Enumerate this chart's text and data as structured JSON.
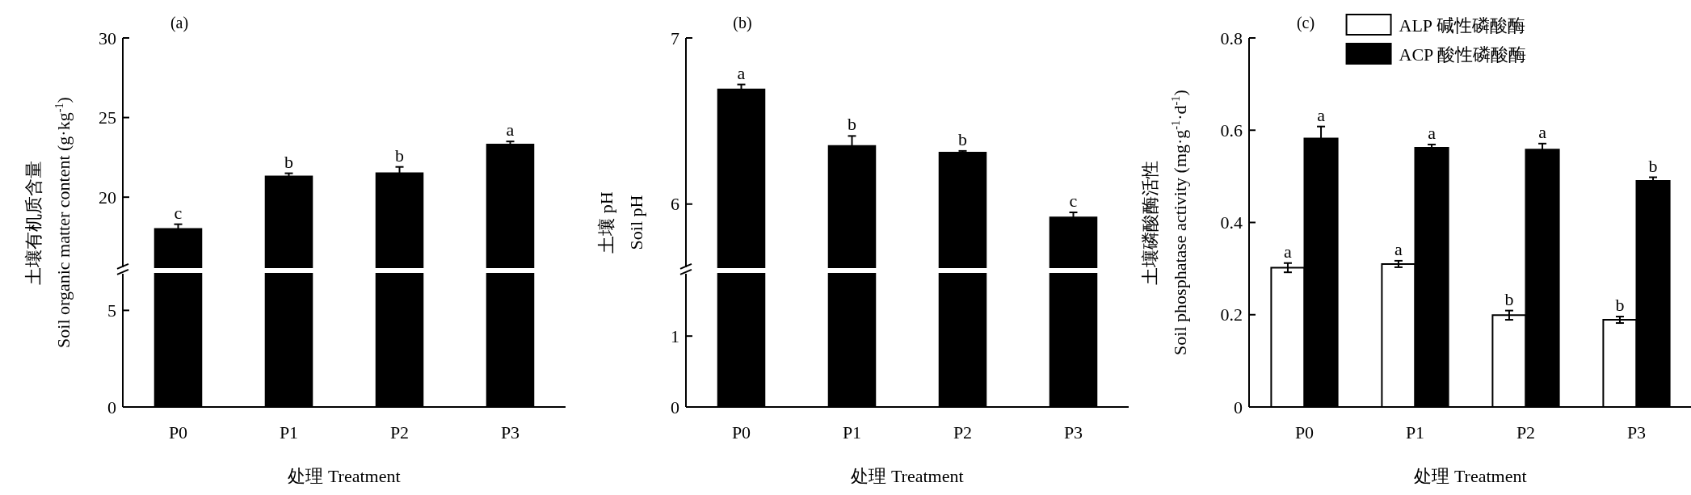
{
  "chart_data": [
    {
      "type": "bar",
      "title": "(a)",
      "ylabel": "土壤有机质含量\nSoil organic matter content (g·kg$^{-1}$)",
      "categories": [
        "P0",
        "P1",
        "P2",
        "P3"
      ],
      "values": [
        18.0,
        21.3,
        21.5,
        23.3
      ],
      "errors": [
        0.3,
        0.2,
        0.4,
        0.2
      ],
      "color": "#000000",
      "ylim": [
        15.6,
        30
      ],
      "yticks": [
        20,
        25,
        30
      ],
      "tick_labels": "y",
      "annotations": [
        {
          "text": "c",
          "x": "P0",
          "y": 18.0
        },
        {
          "text": "b",
          "x": "P1",
          "y": 21.3
        },
        {
          "text": "b",
          "x": "P2",
          "y": 21.5
        },
        {
          "text": "a",
          "x": "P3",
          "y": 23.3
        }
      ]
    },
    {
      "type": "bar",
      "xlabel": "处理 Treatment",
      "categories": [
        "P0",
        "P1",
        "P2",
        "P3"
      ],
      "values": [
        null,
        null,
        null,
        null
      ],
      "color": "#000000",
      "ylim": [
        0,
        6.9
      ],
      "yticks": [
        0,
        5
      ]
    },
    {
      "type": "bar",
      "title": "(b)",
      "ylabel": "土壤 pH\nSoil pH",
      "categories": [
        "P0",
        "P1",
        "P2",
        "P3"
      ],
      "values": [
        6.69,
        6.35,
        6.31,
        5.92
      ],
      "errors": [
        0.03,
        0.06,
        0.01,
        0.03
      ],
      "color": "#000000",
      "ylim": [
        5.62,
        7
      ],
      "yticks": [
        6,
        7
      ],
      "tick_labels": "y",
      "annotations": [
        {
          "text": "a",
          "x": "P0",
          "y": 6.69
        },
        {
          "text": "b",
          "x": "P1",
          "y": 6.35
        },
        {
          "text": "b",
          "x": "P2",
          "y": 6.31
        },
        {
          "text": "c",
          "x": "P3",
          "y": 5.92
        }
      ]
    },
    {
      "type": "bar",
      "xlabel": "处理 Treatment",
      "categories": [
        "P0",
        "P1",
        "P2",
        "P3"
      ],
      "values": [
        null,
        null,
        null,
        null
      ],
      "color": "#000000",
      "ylim": [
        0,
        1.88
      ],
      "yticks": [
        0,
        1
      ]
    },
    {
      "type": "bar",
      "title": "(c)",
      "xlabel": "处理 Treatment",
      "ylabel": "土壤磷酸酶活性\nSoil phosphatase activity (mg·g$^{-1}$·d$^{-1}$)",
      "categories": [
        "P0",
        "P1",
        "P2",
        "P3"
      ],
      "series": [
        {
          "name": "ALP 碱性磷酸酶",
          "color": "#ffffff",
          "values": [
            0.302,
            0.31,
            0.199,
            0.189
          ],
          "errors": [
            0.01,
            0.007,
            0.01,
            0.007
          ]
        },
        {
          "name": "ACP 酸性磷酸酶",
          "color": "#000000",
          "values": [
            0.582,
            0.562,
            0.558,
            0.49
          ],
          "errors": [
            0.026,
            0.007,
            0.013,
            0.008
          ]
        }
      ],
      "ylim": [
        0,
        0.8
      ],
      "yticks": [
        0,
        0.2,
        0.4,
        0.6,
        0.8
      ],
      "legend": "top",
      "annotations": [
        {
          "text": "a",
          "x": "P0",
          "y": 0.302
        },
        {
          "text": "a",
          "x": "P1",
          "y": 0.31
        },
        {
          "text": "b",
          "x": "P2",
          "y": 0.199
        },
        {
          "text": "b",
          "x": "P3",
          "y": 0.189
        },
        {
          "text": "a",
          "x": "P0",
          "y": 0.582
        },
        {
          "text": "a",
          "x": "P1",
          "y": 0.562
        },
        {
          "text": "a",
          "x": "P2",
          "y": 0.558
        },
        {
          "text": "b",
          "x": "P3",
          "y": 0.49
        }
      ]
    }
  ]
}
